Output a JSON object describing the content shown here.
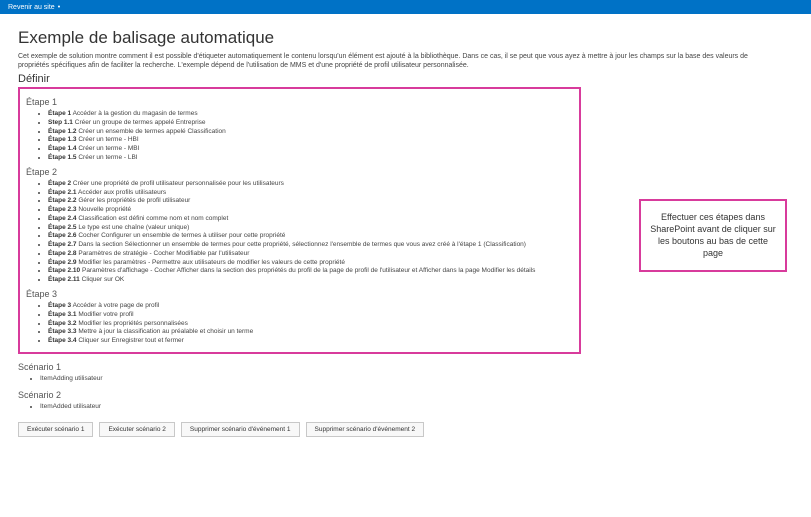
{
  "colors": {
    "accent": "#0072c6",
    "highlight": "#d83b9c",
    "text": "#333333",
    "bg": "#ffffff"
  },
  "topbar": {
    "back_label": "Revenir au site"
  },
  "header": {
    "title": "Exemple de balisage automatique",
    "description": "Cet exemple de solution montre comment il est possible d'étiqueter automatiquement le contenu lorsqu'un élément est ajouté à la bibliothèque. Dans ce cas, il se peut que vous ayez à mettre à jour les champs sur la base des valeurs de propriétés spécifiques afin de faciliter la recherche. L'exemple dépend de l'utilisation de MMS et d'une propriété de profil utilisateur personnalisée.",
    "section_label": "Définir"
  },
  "callout": {
    "text": "Effectuer ces étapes dans SharePoint avant de cliquer sur les boutons au bas de cette page"
  },
  "stages": [
    {
      "title": "Étape 1",
      "items": [
        {
          "b": "Étape 1",
          "t": " Accéder à la gestion du magasin de termes"
        },
        {
          "b": "Step 1.1",
          "t": " Créer un groupe de termes appelé Entreprise"
        },
        {
          "b": "Étape 1.2",
          "t": " Créer un ensemble de termes appelé Classification"
        },
        {
          "b": "Étape 1.3",
          "t": " Créer un terme - HBI"
        },
        {
          "b": "Étape 1.4",
          "t": " Créer un terme - MBI"
        },
        {
          "b": "Étape 1.5",
          "t": " Créer un terme - LBI"
        }
      ]
    },
    {
      "title": "Étape 2",
      "items": [
        {
          "b": "Étape 2",
          "t": " Créer une propriété de profil utilisateur personnalisée pour les utilisateurs"
        },
        {
          "b": "Étape 2.1",
          "t": " Accéder aux profils utilisateurs"
        },
        {
          "b": "Étape 2.2",
          "t": " Gérer les propriétés de profil utilisateur"
        },
        {
          "b": "Étape 2.3",
          "t": " Nouvelle propriété"
        },
        {
          "b": "Étape 2.4",
          "t": " Classification est défini comme nom et nom complet"
        },
        {
          "b": "Étape 2.5",
          "t": " Le type est une chaîne (valeur unique)"
        },
        {
          "b": "Étape 2.6",
          "t": " Cocher Configurer un ensemble de termes à utiliser pour cette propriété"
        },
        {
          "b": "Étape 2.7",
          "t": " Dans la section Sélectionner un ensemble de termes pour cette propriété, sélectionnez l'ensemble de termes que vous avez créé à l'étape 1 (Classification)"
        },
        {
          "b": "Étape 2.8",
          "t": " Paramètres de stratégie - Cocher Modifiable par l'utilisateur"
        },
        {
          "b": "Étape 2.9",
          "t": " Modifier les paramètres - Permettre aux utilisateurs de modifier les valeurs de cette propriété"
        },
        {
          "b": "Étape 2.10",
          "t": " Paramètres d'affichage - Cocher Afficher dans la section des propriétés du profil de la page de profil de l'utilisateur et Afficher dans la page Modifier les détails"
        },
        {
          "b": "Étape 2.11",
          "t": " Cliquer sur OK"
        }
      ]
    },
    {
      "title": "Étape 3",
      "items": [
        {
          "b": "Étape 3",
          "t": " Accéder à votre page de profil"
        },
        {
          "b": "Étape 3.1",
          "t": " Modifier votre profil"
        },
        {
          "b": "Étape 3.2",
          "t": " Modifier les propriétés personnalisées"
        },
        {
          "b": "Étape 3.3",
          "t": " Mettre à jour la classification au préalable et choisir un terme"
        },
        {
          "b": "Étape 3.4",
          "t": " Cliquer sur Enregistrer tout et fermer"
        }
      ]
    }
  ],
  "scenarios": [
    {
      "title": "Scénario 1",
      "item": "ItemAdding utilisateur"
    },
    {
      "title": "Scénario 2",
      "item": "ItemAdded utilisateur"
    }
  ],
  "buttons": {
    "run1": "Exécuter scénario 1",
    "run2": "Exécuter scénario 2",
    "del1": "Supprimer scénario d'événement 1",
    "del2": "Supprimer scénario d'événement 2"
  }
}
